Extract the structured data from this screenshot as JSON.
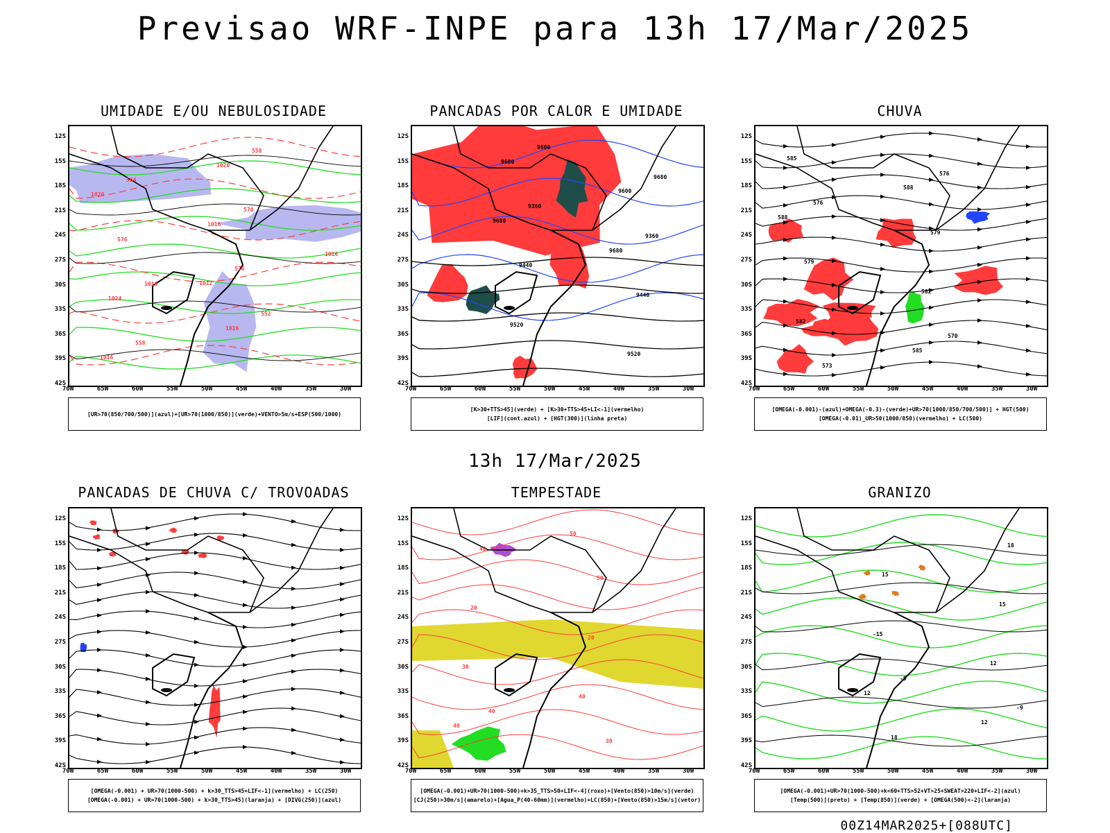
{
  "header": {
    "title": "Previsao WRF-INPE  para 13h 17/Mar/2025"
  },
  "mid_label": "13h 17/Mar/2025",
  "footer": "00Z14MAR2025+[088UTC]",
  "axes": {
    "lat_ticks": [
      "12S",
      "15S",
      "18S",
      "21S",
      "24S",
      "27S",
      "30S",
      "33S",
      "36S",
      "39S",
      "42S"
    ],
    "lon_ticks": [
      "70W",
      "65W",
      "60W",
      "55W",
      "50W",
      "45W",
      "40W",
      "35W",
      "30W"
    ]
  },
  "panels": [
    {
      "title": "UMIDADE E/OU NEBULOSIDADE",
      "legend": [
        "[UR>70(850/700/500)](azul)+[UR>70(1000/850)](verde)+VENTO>5m/s+ESP(500/1000)"
      ],
      "labels": [
        "1012",
        "1016",
        "1016",
        "1020",
        "1020",
        "1016",
        "1016",
        "1024",
        "576",
        "576",
        "570",
        "564",
        "558",
        "558",
        "552",
        "1018"
      ]
    },
    {
      "title": "PANCADAS POR CALOR E UMIDADE",
      "legend": [
        "[K>30+TTS>45](verde) + [K>30+TTS>45+LI<-1](vermelho)",
        "[LIF](cont.azul) + [HGT(300)](linha preta)"
      ],
      "labels": [
        "9680",
        "9680",
        "9600",
        "9600",
        "9520",
        "9520",
        "9440",
        "9440",
        "9360",
        "9360",
        "9680",
        "9600"
      ]
    },
    {
      "title": "CHUVA",
      "legend": [
        "[OMEGA(-0.001)-(azul)+OMEGA(-0.3)-(verde)+UR>70(1000/850/700/500)] + HGT(500)",
        "[OMEGA(-0.01)_UR>50(1000/850)(vermelho) + LC(500)"
      ],
      "labels": [
        "588",
        "588",
        "585",
        "585",
        "582",
        "582",
        "579",
        "579",
        "576",
        "576",
        "573",
        "570"
      ]
    },
    {
      "title": "PANCADAS DE CHUVA C/ TROVOADAS",
      "legend": [
        "[OMEGA(-0.001) + UR>70(1000-500) + k>30_TTS>45+LIF<-1](vermelho) + LC(250)",
        "[OMEGA(-0.001) + UR>70(1000-500) + k>30_TTS>45](laranja) + [DIVG(250)](azul)"
      ],
      "labels": []
    },
    {
      "title": "TEMPESTADE",
      "legend": [
        "[OMEGA(-0.001)+UR>70(1000-500)+k>35_TTS>50+LIF<-4](roxo)+[Vento(850)>10m/s](verde)",
        "[CJ(250)>30m/s](amarelo)+[Agua_P(40-60mm)](vermelho)+LC(850)+[Vento(850)>15m/s](vetor)"
      ],
      "labels": [
        "50",
        "40",
        "40",
        "30",
        "20",
        "20",
        "50",
        "40",
        "30",
        "40"
      ]
    },
    {
      "title": "GRANIZO",
      "legend": [
        "[OMEGA(-0.001)+UR>70(1000-500)+k<60+TTS>52+VT>25+SWEAT>220+LIF<-2](azul)",
        "[Temp(500)](preto) + [Temp(850)](verde) + [OMEGA(500)<-2](laranja)"
      ],
      "labels": [
        "12",
        "12",
        "12",
        "-15",
        "15",
        "15",
        "18",
        "18",
        "-9",
        "-9"
      ]
    }
  ],
  "colors": {
    "red": "#ff3b3b",
    "green": "#22dd22",
    "blue": "#2244ff",
    "lavender": "#b8b8f0",
    "darkteal": "#1f4d4a",
    "yellow": "#e0d830",
    "orange": "#e07a20",
    "purple": "#9a22c8"
  }
}
